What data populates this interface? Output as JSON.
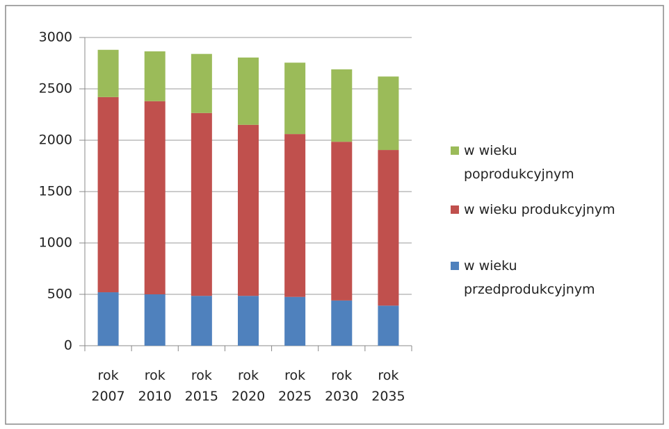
{
  "chart_data": {
    "type": "stacked_bar",
    "categories": [
      "rok 2007",
      "rok 2010",
      "rok 2015",
      "rok 2020",
      "rok 2025",
      "rok 2030",
      "rok 2035"
    ],
    "series": [
      {
        "name": "w wieku przedprodukcyjnym",
        "color": "#4f81bd",
        "values": [
          520,
          500,
          485,
          485,
          475,
          440,
          390
        ]
      },
      {
        "name": "w wieku produkcyjnym",
        "color": "#c0504d",
        "values": [
          1900,
          1880,
          1780,
          1665,
          1585,
          1545,
          1515
        ]
      },
      {
        "name": "w wieku poprodukcyjnym",
        "color": "#9bbb59",
        "values": [
          460,
          485,
          575,
          655,
          695,
          705,
          715
        ]
      }
    ],
    "ylim": [
      0,
      3000
    ],
    "yticks": [
      0,
      500,
      1000,
      1500,
      2000,
      2500,
      3000
    ],
    "grid": true
  }
}
